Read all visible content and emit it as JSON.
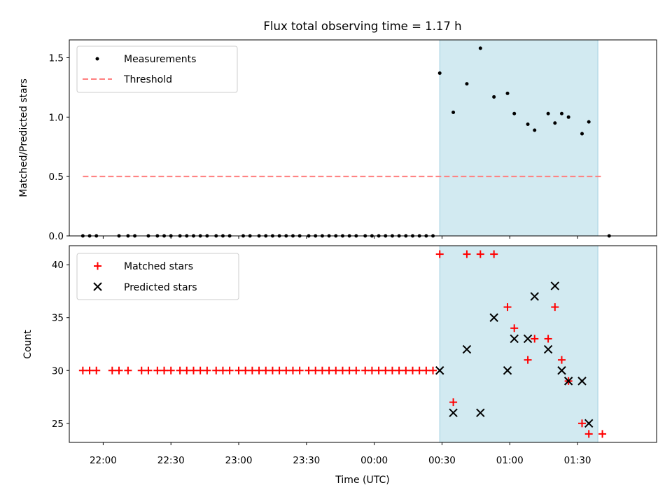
{
  "chart_data": [
    {
      "type": "scatter",
      "title": "Flux total observing time = 1.17 h",
      "ylabel": "Matched/Predicted stars",
      "xlabel": "",
      "ylim": [
        0,
        1.65
      ],
      "xlim": [
        "21:45",
        "02:05"
      ],
      "yticks": [
        0.0,
        0.5,
        1.0,
        1.5
      ],
      "ytick_labels": [
        "0.0",
        "0.5",
        "1.0",
        "1.5"
      ],
      "legend": {
        "placement": "top-left",
        "entries": [
          "Measurements",
          "Threshold"
        ]
      },
      "observing_window": {
        "start": "00:29",
        "end": "01:39",
        "color": "#add8e6"
      },
      "threshold": {
        "name": "Threshold",
        "value": 0.5,
        "x_start": "21:51",
        "x_end": "01:41",
        "color": "#ff7f7f",
        "style": "dashed"
      },
      "series": [
        {
          "name": "Measurements",
          "marker": "dot",
          "color": "#000000",
          "x": [
            "21:51",
            "21:54",
            "21:57",
            "22:01",
            "22:04",
            "22:07",
            "22:11",
            "22:14",
            "22:17",
            "22:20",
            "22:24",
            "22:27",
            "22:30",
            "22:34",
            "22:37",
            "22:40",
            "22:43",
            "22:46",
            "22:50",
            "22:53",
            "22:56",
            "22:59",
            "23:02",
            "23:05",
            "23:09",
            "23:12",
            "23:15",
            "23:18",
            "23:21",
            "23:24",
            "23:27",
            "23:31",
            "23:34",
            "23:37",
            "23:40",
            "23:43",
            "23:46",
            "23:49",
            "23:52",
            "23:56",
            "23:59",
            "00:02",
            "00:05",
            "00:08",
            "00:11",
            "00:14",
            "00:17",
            "00:20",
            "00:23",
            "00:26",
            "00:29",
            "00:32",
            "00:35",
            "00:38",
            "00:41",
            "00:44",
            "00:47",
            "00:50",
            "00:53",
            "00:56",
            "00:59",
            "01:02",
            "01:05",
            "01:08",
            "01:11",
            "01:14",
            "01:17",
            "01:20",
            "01:23",
            "01:26",
            "01:29",
            "01:32",
            "01:35",
            "01:38",
            "01:41",
            "01:44"
          ],
          "y": [
            0,
            0,
            0,
            null,
            null,
            0,
            0,
            0,
            null,
            0,
            0,
            0,
            0,
            0,
            0,
            0,
            0,
            0,
            0,
            0,
            0,
            null,
            0,
            0,
            0,
            0,
            0,
            0,
            0,
            0,
            0,
            0,
            0,
            0,
            0,
            0,
            0,
            0,
            0,
            0,
            0,
            0,
            0,
            0,
            0,
            0,
            0,
            0,
            0,
            0,
            1.37,
            null,
            1.04,
            null,
            1.28,
            null,
            1.58,
            null,
            1.17,
            null,
            1.2,
            1.03,
            null,
            0.94,
            0.89,
            null,
            1.03,
            0.95,
            1.03,
            1.0,
            null,
            0.86,
            0.96,
            null,
            null,
            0
          ]
        }
      ]
    },
    {
      "type": "scatter",
      "title": "",
      "ylabel": "Count",
      "xlabel": "Time (UTC)",
      "ylim": [
        23.2,
        41.8
      ],
      "xlim": [
        "21:45",
        "02:05"
      ],
      "yticks": [
        25,
        30,
        35,
        40
      ],
      "ytick_labels": [
        "25",
        "30",
        "35",
        "40"
      ],
      "xticks": [
        "22:00",
        "22:30",
        "23:00",
        "23:30",
        "00:00",
        "00:30",
        "01:00",
        "01:30"
      ],
      "xtick_labels": [
        "22:00",
        "22:30",
        "23:00",
        "23:30",
        "00:00",
        "00:30",
        "01:00",
        "01:30"
      ],
      "legend": {
        "placement": "top-left",
        "entries": [
          "Matched stars",
          "Predicted stars"
        ]
      },
      "observing_window": {
        "start": "00:29",
        "end": "01:39",
        "color": "#add8e6"
      },
      "series": [
        {
          "name": "Matched stars",
          "marker": "plus",
          "color": "#ff0000",
          "x": [
            "21:51",
            "21:54",
            "21:57",
            "22:04",
            "22:07",
            "22:11",
            "22:17",
            "22:20",
            "22:24",
            "22:27",
            "22:30",
            "22:34",
            "22:37",
            "22:40",
            "22:43",
            "22:46",
            "22:50",
            "22:53",
            "22:56",
            "23:00",
            "23:03",
            "23:06",
            "23:09",
            "23:12",
            "23:15",
            "23:18",
            "23:21",
            "23:24",
            "23:27",
            "23:31",
            "23:34",
            "23:37",
            "23:40",
            "23:43",
            "23:46",
            "23:49",
            "23:52",
            "23:56",
            "23:59",
            "00:02",
            "00:05",
            "00:08",
            "00:11",
            "00:14",
            "00:17",
            "00:20",
            "00:23",
            "00:26",
            "00:29",
            "00:32",
            "00:35",
            "00:38",
            "00:41",
            "00:44",
            "00:47",
            "00:50",
            "00:53",
            "00:56",
            "00:59",
            "01:02",
            "01:05",
            "01:08",
            "01:11",
            "01:14",
            "01:17",
            "01:20",
            "01:23",
            "01:26",
            "01:29",
            "01:32",
            "01:35",
            "01:38",
            "01:41",
            "01:44"
          ],
          "y": [
            30,
            30,
            30,
            30,
            30,
            30,
            30,
            30,
            30,
            30,
            30,
            30,
            30,
            30,
            30,
            30,
            30,
            30,
            30,
            30,
            30,
            30,
            30,
            30,
            30,
            30,
            30,
            30,
            30,
            30,
            30,
            30,
            30,
            30,
            30,
            30,
            30,
            30,
            30,
            30,
            30,
            30,
            30,
            30,
            30,
            30,
            30,
            30,
            41,
            null,
            27,
            null,
            41,
            null,
            41,
            null,
            41,
            null,
            36,
            34,
            null,
            31,
            33,
            null,
            33,
            36,
            31,
            29,
            null,
            25,
            24,
            null,
            24,
            null
          ]
        },
        {
          "name": "Predicted stars",
          "marker": "x",
          "color": "#000000",
          "x": [
            "00:29",
            "00:32",
            "00:35",
            "00:38",
            "00:41",
            "00:44",
            "00:47",
            "00:50",
            "00:53",
            "00:56",
            "00:59",
            "01:02",
            "01:05",
            "01:08",
            "01:11",
            "01:14",
            "01:17",
            "01:20",
            "01:23",
            "01:26",
            "01:29",
            "01:32",
            "01:35",
            "01:38"
          ],
          "y": [
            30,
            null,
            26,
            null,
            32,
            null,
            26,
            null,
            35,
            null,
            30,
            33,
            null,
            33,
            37,
            null,
            32,
            38,
            30,
            29,
            null,
            29,
            25,
            null
          ]
        }
      ]
    }
  ]
}
